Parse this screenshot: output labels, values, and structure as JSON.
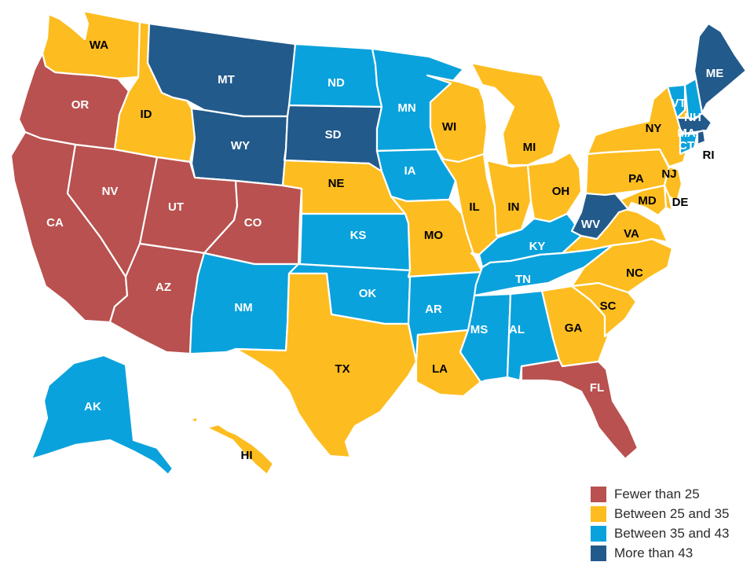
{
  "colors": {
    "fewer_than_25": "#b8514f",
    "between_25_35": "#fdbd20",
    "between_35_43": "#0aa2dc",
    "more_than_43": "#225a8b"
  },
  "legend": [
    {
      "key": "fewer_than_25",
      "label": "Fewer than 25"
    },
    {
      "key": "between_25_35",
      "label": "Between 25 and 35"
    },
    {
      "key": "between_35_43",
      "label": "Between 35 and 43"
    },
    {
      "key": "more_than_43",
      "label": "More than 43"
    }
  ],
  "states": [
    {
      "code": "WA",
      "category": "between_25_35"
    },
    {
      "code": "OR",
      "category": "fewer_than_25"
    },
    {
      "code": "CA",
      "category": "fewer_than_25"
    },
    {
      "code": "NV",
      "category": "fewer_than_25"
    },
    {
      "code": "ID",
      "category": "between_25_35"
    },
    {
      "code": "MT",
      "category": "more_than_43"
    },
    {
      "code": "WY",
      "category": "more_than_43"
    },
    {
      "code": "UT",
      "category": "fewer_than_25"
    },
    {
      "code": "AZ",
      "category": "fewer_than_25"
    },
    {
      "code": "CO",
      "category": "fewer_than_25"
    },
    {
      "code": "NM",
      "category": "between_35_43"
    },
    {
      "code": "ND",
      "category": "between_35_43"
    },
    {
      "code": "SD",
      "category": "more_than_43"
    },
    {
      "code": "NE",
      "category": "between_25_35"
    },
    {
      "code": "KS",
      "category": "between_35_43"
    },
    {
      "code": "OK",
      "category": "between_35_43"
    },
    {
      "code": "TX",
      "category": "between_25_35"
    },
    {
      "code": "MN",
      "category": "between_35_43"
    },
    {
      "code": "IA",
      "category": "between_35_43"
    },
    {
      "code": "MO",
      "category": "between_25_35"
    },
    {
      "code": "AR",
      "category": "between_35_43"
    },
    {
      "code": "LA",
      "category": "between_25_35"
    },
    {
      "code": "WI",
      "category": "between_25_35"
    },
    {
      "code": "IL",
      "category": "between_25_35"
    },
    {
      "code": "MI",
      "category": "between_25_35"
    },
    {
      "code": "IN",
      "category": "between_25_35"
    },
    {
      "code": "OH",
      "category": "between_25_35"
    },
    {
      "code": "KY",
      "category": "between_35_43"
    },
    {
      "code": "TN",
      "category": "between_35_43"
    },
    {
      "code": "MS",
      "category": "between_35_43"
    },
    {
      "code": "AL",
      "category": "between_35_43"
    },
    {
      "code": "GA",
      "category": "between_25_35"
    },
    {
      "code": "FL",
      "category": "fewer_than_25"
    },
    {
      "code": "SC",
      "category": "between_25_35"
    },
    {
      "code": "NC",
      "category": "between_25_35"
    },
    {
      "code": "VA",
      "category": "between_25_35"
    },
    {
      "code": "WV",
      "category": "more_than_43"
    },
    {
      "code": "PA",
      "category": "between_25_35"
    },
    {
      "code": "NY",
      "category": "between_25_35"
    },
    {
      "code": "VT",
      "category": "between_35_43"
    },
    {
      "code": "NH",
      "category": "between_35_43"
    },
    {
      "code": "ME",
      "category": "more_than_43"
    },
    {
      "code": "MA",
      "category": "more_than_43"
    },
    {
      "code": "CT",
      "category": "between_35_43"
    },
    {
      "code": "RI",
      "category": "more_than_43"
    },
    {
      "code": "NJ",
      "category": "between_25_35"
    },
    {
      "code": "DE",
      "category": "between_25_35"
    },
    {
      "code": "MD",
      "category": "between_25_35"
    },
    {
      "code": "AK",
      "category": "between_35_43"
    },
    {
      "code": "HI",
      "category": "between_25_35"
    }
  ]
}
